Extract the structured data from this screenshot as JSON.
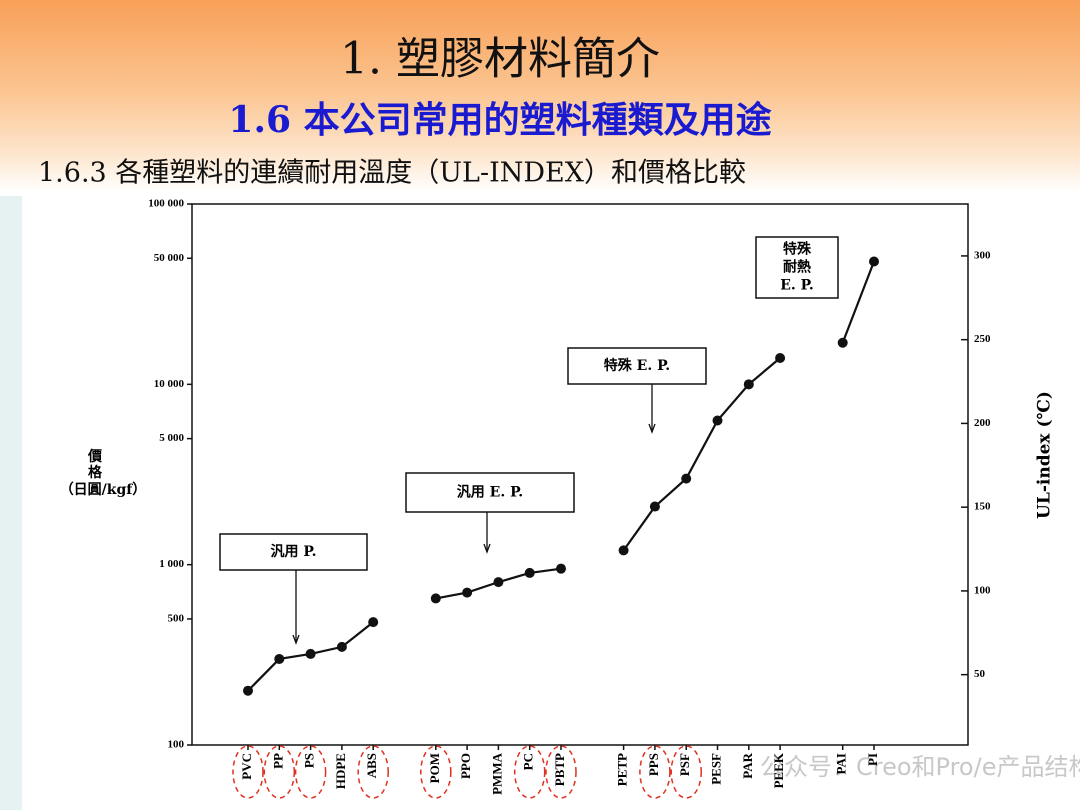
{
  "header": {
    "title": "1.  塑膠材料簡介",
    "subtitle": "1.6   本公司常用的塑料種類及用途",
    "section": "1.6.3 各種塑料的連續耐用溫度（UL-INDEX）和價格比較"
  },
  "chart_data": {
    "type": "line",
    "ylabel": [
      "價",
      "格",
      "（日圓/kgf）"
    ],
    "y2label": "UL-index (℃)",
    "log_y": true,
    "categories": [
      "PVC",
      "PP",
      "PS",
      "HDPE",
      "ABS",
      null,
      "POM",
      "PPO",
      "PMMA",
      "PC",
      "PBTP",
      null,
      "PETP",
      "PPS",
      "PSF",
      "PESF",
      "PAR",
      "PEEK",
      null,
      "PAI",
      "PI"
    ],
    "series": [
      {
        "name": null,
        "color": "#111111",
        "values": [
          200,
          300,
          320,
          350,
          480,
          null,
          650,
          700,
          800,
          900,
          950,
          null,
          1200,
          2100,
          3000,
          6300,
          10000,
          14000,
          null,
          17000,
          48000
        ]
      }
    ],
    "ylim": [
      100,
      100000
    ],
    "yticks": [
      100,
      500,
      {
        "value": 1000,
        "label": "1 000"
      },
      {
        "value": 5000,
        "label": "5 000"
      },
      {
        "value": 10000,
        "label": "10 000"
      },
      {
        "value": 50000,
        "label": "50 000"
      },
      {
        "value": 100000,
        "label": "100 000"
      }
    ],
    "y2lim": [
      8,
      331
    ],
    "y2ticks": [
      50,
      100,
      150,
      200,
      250,
      300
    ],
    "annotations": [
      {
        "lines": [
          "汎用 P."
        ],
        "index": 2
      },
      {
        "lines": [
          "汎用 E. P."
        ],
        "index": 8
      },
      {
        "lines": [
          "特殊 E. P."
        ],
        "index": 14
      },
      {
        "lines": [
          "特殊",
          "耐熱",
          "E. P."
        ],
        "index": null
      }
    ],
    "watermark": "公众号：Creo和Pro/e产品结构设计集"
  }
}
